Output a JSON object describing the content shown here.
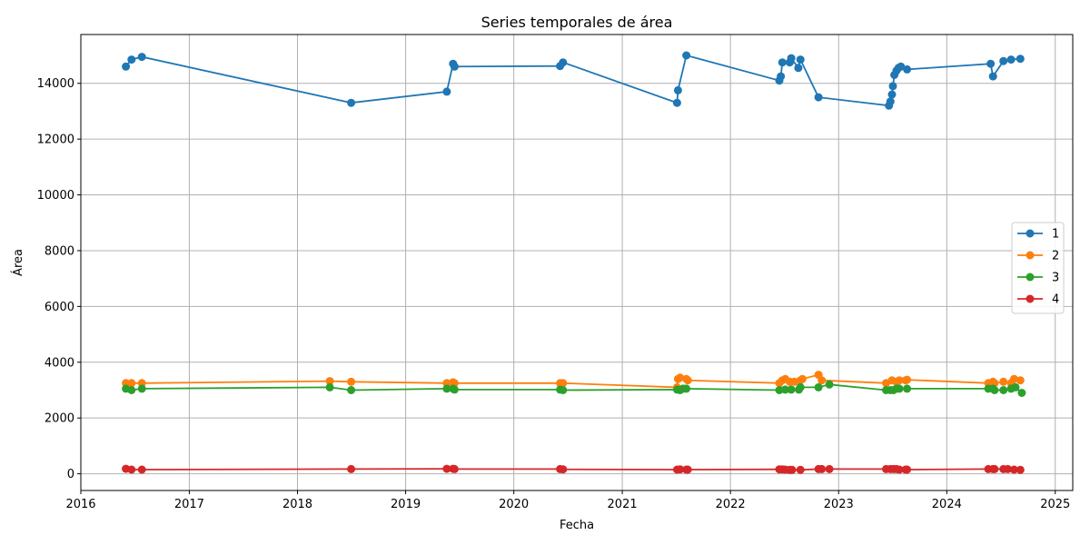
{
  "chart_data": {
    "type": "line",
    "title": "Series temporales de área",
    "xlabel": "Fecha",
    "ylabel": "Área",
    "x_type": "date",
    "xlim": [
      "2016-01-01",
      "2025-03-01"
    ],
    "ylim": [
      -600,
      15750
    ],
    "x_ticks": [
      "2016",
      "2017",
      "2018",
      "2019",
      "2020",
      "2021",
      "2022",
      "2023",
      "2024",
      "2025"
    ],
    "y_ticks": [
      0,
      2000,
      4000,
      6000,
      8000,
      10000,
      12000,
      14000
    ],
    "grid": true,
    "legend_position": "center-right",
    "series": [
      {
        "name": "1",
        "color": "#1f77b4",
        "points": [
          [
            "2016-06-01",
            14600
          ],
          [
            "2016-06-20",
            14850
          ],
          [
            "2016-07-25",
            14950
          ],
          [
            "2018-07-01",
            13300
          ],
          [
            "2019-05-20",
            13700
          ],
          [
            "2019-06-10",
            14700
          ],
          [
            "2019-06-15",
            14600
          ],
          [
            "2020-06-05",
            14620
          ],
          [
            "2020-06-15",
            14750
          ],
          [
            "2021-07-05",
            13300
          ],
          [
            "2021-07-08",
            13750
          ],
          [
            "2021-08-05",
            15000
          ],
          [
            "2022-06-15",
            14100
          ],
          [
            "2022-06-20",
            14250
          ],
          [
            "2022-06-25",
            14750
          ],
          [
            "2022-07-20",
            14750
          ],
          [
            "2022-07-25",
            14900
          ],
          [
            "2022-08-18",
            14550
          ],
          [
            "2022-08-25",
            14850
          ],
          [
            "2022-10-25",
            13500
          ],
          [
            "2023-06-20",
            13200
          ],
          [
            "2023-06-25",
            13350
          ],
          [
            "2023-06-30",
            13600
          ],
          [
            "2023-07-03",
            13900
          ],
          [
            "2023-07-08",
            14300
          ],
          [
            "2023-07-15",
            14450
          ],
          [
            "2023-07-22",
            14550
          ],
          [
            "2023-07-30",
            14600
          ],
          [
            "2023-08-20",
            14500
          ],
          [
            "2024-05-28",
            14700
          ],
          [
            "2024-06-05",
            14250
          ],
          [
            "2024-07-10",
            14800
          ],
          [
            "2024-08-05",
            14850
          ],
          [
            "2024-09-05",
            14880
          ]
        ]
      },
      {
        "name": "2",
        "color": "#ff7f0e",
        "points": [
          [
            "2016-06-01",
            3250
          ],
          [
            "2016-06-20",
            3250
          ],
          [
            "2016-07-25",
            3250
          ],
          [
            "2018-04-20",
            3320
          ],
          [
            "2018-07-01",
            3300
          ],
          [
            "2019-05-20",
            3250
          ],
          [
            "2019-06-10",
            3280
          ],
          [
            "2019-06-15",
            3250
          ],
          [
            "2020-06-05",
            3250
          ],
          [
            "2020-06-15",
            3250
          ],
          [
            "2021-07-05",
            3100
          ],
          [
            "2021-07-08",
            3400
          ],
          [
            "2021-07-15",
            3450
          ],
          [
            "2021-08-05",
            3400
          ],
          [
            "2021-08-10",
            3350
          ],
          [
            "2022-06-15",
            3250
          ],
          [
            "2022-06-25",
            3350
          ],
          [
            "2022-07-05",
            3400
          ],
          [
            "2022-07-20",
            3300
          ],
          [
            "2022-08-05",
            3300
          ],
          [
            "2022-08-25",
            3350
          ],
          [
            "2022-09-01",
            3400
          ],
          [
            "2022-10-25",
            3550
          ],
          [
            "2022-11-05",
            3350
          ],
          [
            "2023-06-10",
            3250
          ],
          [
            "2023-06-30",
            3350
          ],
          [
            "2023-07-15",
            3300
          ],
          [
            "2023-07-25",
            3350
          ],
          [
            "2023-08-15",
            3350
          ],
          [
            "2023-08-20",
            3370
          ],
          [
            "2024-05-20",
            3250
          ],
          [
            "2024-06-05",
            3300
          ],
          [
            "2024-06-10",
            3250
          ],
          [
            "2024-07-10",
            3300
          ],
          [
            "2024-08-05",
            3250
          ],
          [
            "2024-08-15",
            3400
          ],
          [
            "2024-09-05",
            3350
          ]
        ]
      },
      {
        "name": "3",
        "color": "#2ca02c",
        "points": [
          [
            "2016-06-01",
            3050
          ],
          [
            "2016-06-20",
            3000
          ],
          [
            "2016-07-25",
            3050
          ],
          [
            "2018-04-20",
            3100
          ],
          [
            "2018-07-01",
            3000
          ],
          [
            "2019-05-20",
            3050
          ],
          [
            "2019-06-10",
            3050
          ],
          [
            "2019-06-15",
            3020
          ],
          [
            "2020-06-05",
            3020
          ],
          [
            "2020-06-15",
            3000
          ],
          [
            "2021-07-05",
            3020
          ],
          [
            "2021-07-15",
            3000
          ],
          [
            "2021-07-25",
            3050
          ],
          [
            "2021-08-05",
            3050
          ],
          [
            "2022-06-15",
            3000
          ],
          [
            "2022-07-05",
            3020
          ],
          [
            "2022-07-25",
            3020
          ],
          [
            "2022-08-20",
            3020
          ],
          [
            "2022-08-25",
            3100
          ],
          [
            "2022-10-25",
            3100
          ],
          [
            "2022-12-01",
            3200
          ],
          [
            "2023-06-10",
            3000
          ],
          [
            "2023-06-25",
            3000
          ],
          [
            "2023-07-05",
            3000
          ],
          [
            "2023-07-15",
            3050
          ],
          [
            "2023-07-25",
            3050
          ],
          [
            "2023-08-20",
            3050
          ],
          [
            "2024-05-20",
            3050
          ],
          [
            "2024-06-05",
            3050
          ],
          [
            "2024-06-10",
            3000
          ],
          [
            "2024-07-10",
            3000
          ],
          [
            "2024-08-05",
            3050
          ],
          [
            "2024-08-20",
            3100
          ],
          [
            "2024-09-10",
            2900
          ]
        ]
      },
      {
        "name": "4",
        "color": "#d62728",
        "points": [
          [
            "2016-06-01",
            180
          ],
          [
            "2016-06-20",
            150
          ],
          [
            "2016-07-25",
            150
          ],
          [
            "2018-07-01",
            170
          ],
          [
            "2019-05-20",
            180
          ],
          [
            "2019-06-10",
            180
          ],
          [
            "2019-06-15",
            170
          ],
          [
            "2020-06-05",
            170
          ],
          [
            "2020-06-15",
            160
          ],
          [
            "2021-07-05",
            150
          ],
          [
            "2021-07-15",
            160
          ],
          [
            "2021-08-05",
            150
          ],
          [
            "2021-08-10",
            150
          ],
          [
            "2022-06-15",
            160
          ],
          [
            "2022-06-25",
            160
          ],
          [
            "2022-07-05",
            150
          ],
          [
            "2022-07-20",
            140
          ],
          [
            "2022-07-28",
            140
          ],
          [
            "2022-08-25",
            140
          ],
          [
            "2022-10-25",
            170
          ],
          [
            "2022-11-05",
            170
          ],
          [
            "2022-12-01",
            170
          ],
          [
            "2023-06-10",
            170
          ],
          [
            "2023-06-25",
            170
          ],
          [
            "2023-07-05",
            170
          ],
          [
            "2023-07-15",
            170
          ],
          [
            "2023-07-25",
            150
          ],
          [
            "2023-08-15",
            150
          ],
          [
            "2023-08-20",
            150
          ],
          [
            "2024-05-20",
            170
          ],
          [
            "2024-06-05",
            170
          ],
          [
            "2024-06-10",
            170
          ],
          [
            "2024-07-10",
            170
          ],
          [
            "2024-07-25",
            170
          ],
          [
            "2024-08-15",
            150
          ],
          [
            "2024-09-05",
            140
          ]
        ]
      }
    ]
  }
}
